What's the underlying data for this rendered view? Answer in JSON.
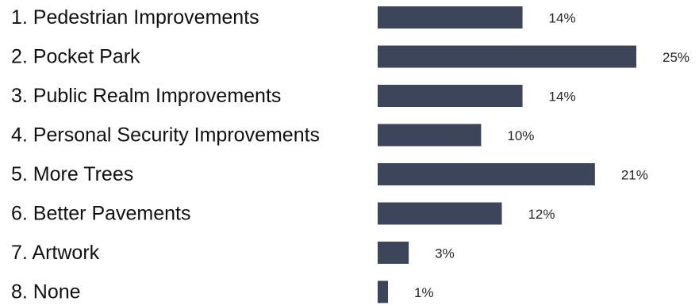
{
  "chart_data": {
    "type": "bar",
    "orientation": "horizontal",
    "categories": [
      "1. Pedestrian Improvements",
      "2. Pocket Park",
      "3. Public Realm Improvements",
      "4. Personal Security Improvements",
      "5. More Trees",
      "6. Better Pavements",
      "7. Artwork",
      "8. None"
    ],
    "values": [
      14,
      25,
      14,
      10,
      21,
      12,
      3,
      1
    ],
    "value_labels": [
      "14%",
      "25%",
      "14%",
      "10%",
      "21%",
      "12%",
      "3%",
      "1%"
    ],
    "unit": "%",
    "title": "",
    "xlabel": "",
    "ylabel": "",
    "xlim": [
      0,
      25
    ],
    "grid": false,
    "legend": "none",
    "bar_color": "#3c4559"
  }
}
